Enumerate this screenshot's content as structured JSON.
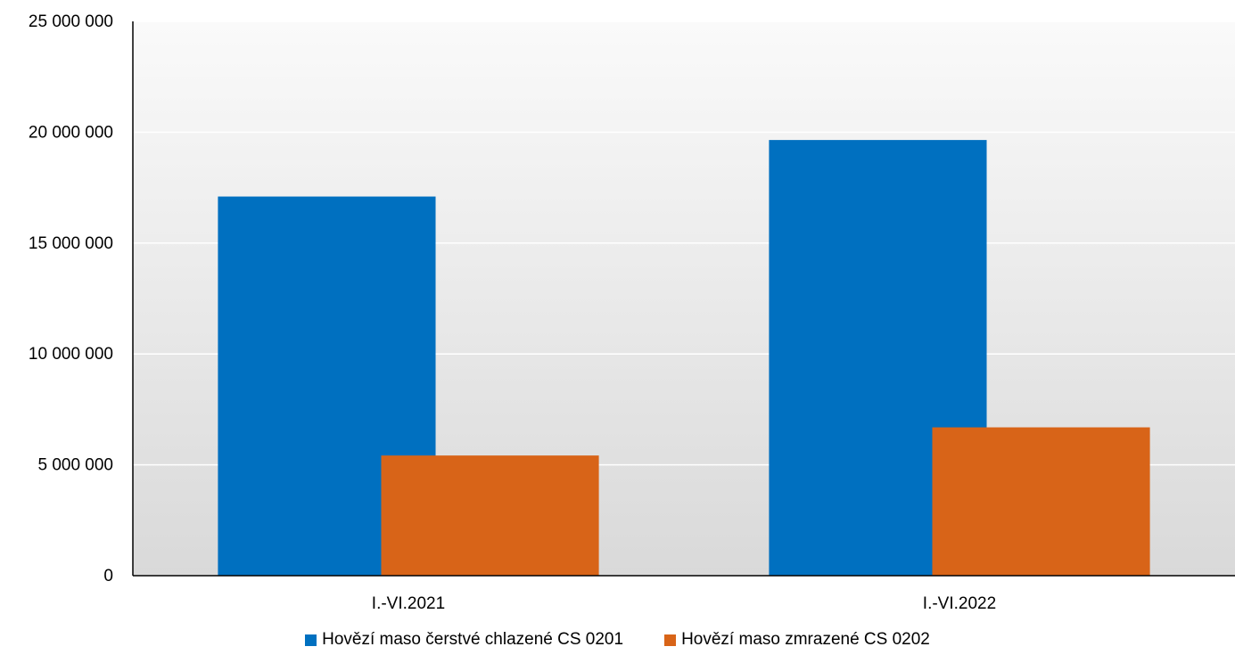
{
  "chart_data": {
    "type": "bar",
    "title": "",
    "xlabel": "",
    "ylabel": "",
    "categories": [
      "I.-VI.2021",
      "I.-VI.2022"
    ],
    "series": [
      {
        "name": "Hovězí maso čerstvé chlazené CS 0201",
        "color": "#0070C0",
        "values": [
          17100000,
          19650000
        ]
      },
      {
        "name": "Hovězí maso zmrazené CS 0202",
        "color": "#D86418",
        "values": [
          5420000,
          6690000
        ]
      }
    ],
    "ylim": [
      0,
      25000000
    ],
    "yticks": [
      0,
      5000000,
      10000000,
      15000000,
      20000000,
      25000000
    ],
    "ytick_labels": [
      "0",
      "5 000 000",
      "10 000 000",
      "15 000 000",
      "20 000 000",
      "25 000 000"
    ],
    "grid": true,
    "legend_position": "bottom"
  }
}
